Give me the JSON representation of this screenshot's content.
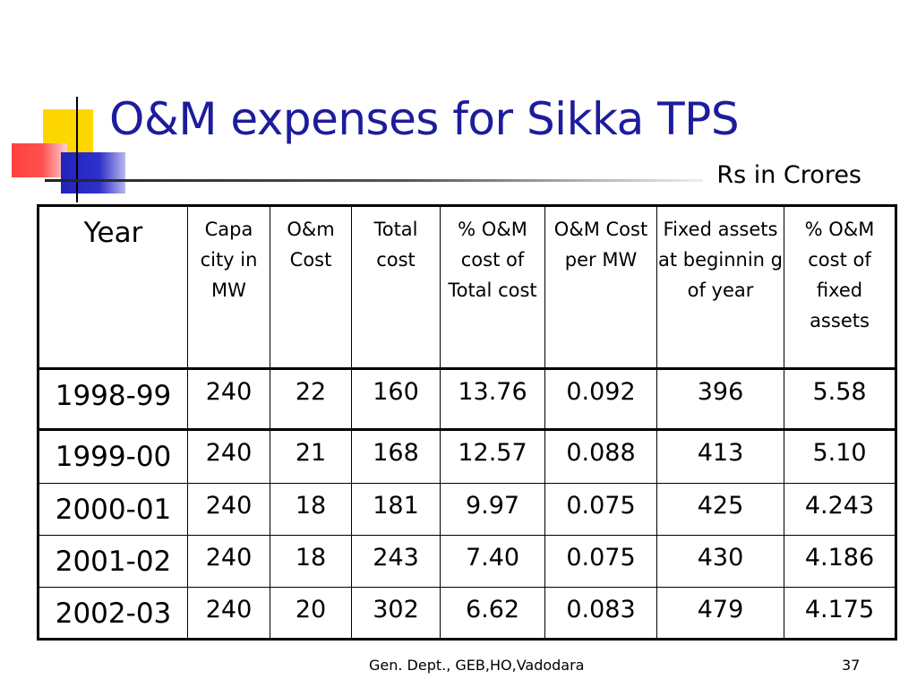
{
  "slide": {
    "title": "O&M expenses for Sikka TPS",
    "units": "Rs in Crores",
    "footer": "Gen. Dept., GEB,HO,Vadodara",
    "page_number": "37"
  },
  "table": {
    "headers": [
      "Year",
      "Capa city in MW",
      "O&m Cost",
      "Total cost",
      "% O&M cost of Total cost",
      "O&M Cost per MW",
      "Fixed assets at beginnin g of year",
      "% O&M cost of fixed assets"
    ],
    "rows": [
      [
        "1998-99",
        "240",
        "22",
        "160",
        "13.76",
        "0.092",
        "396",
        "5.58"
      ],
      [
        "1999-00",
        "240",
        "21",
        "168",
        "12.57",
        "0.088",
        "413",
        "5.10"
      ],
      [
        "2000-01",
        "240",
        "18",
        "181",
        "9.97",
        "0.075",
        "425",
        "4.243"
      ],
      [
        "2001-02",
        "240",
        "18",
        "243",
        "7.40",
        "0.075",
        "430",
        "4.186"
      ],
      [
        "2002-03",
        "240",
        "20",
        "302",
        "6.62",
        "0.083",
        "479",
        "4.175"
      ]
    ]
  },
  "colors": {
    "title": "#1c1c9c",
    "accent_yellow": "#ffd700",
    "accent_red": "#ff4040",
    "accent_blue": "#2222bb"
  }
}
